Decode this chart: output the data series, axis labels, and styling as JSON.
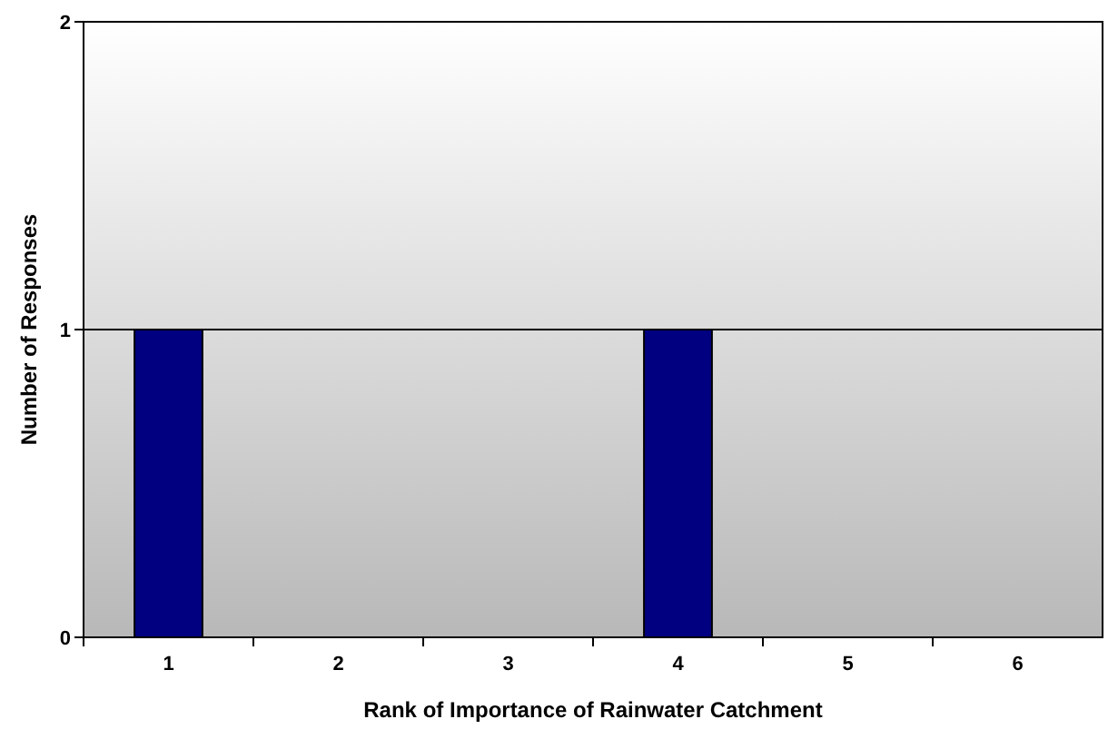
{
  "chart_data": {
    "type": "bar",
    "xlabel": "Rank of Importance of Rainwater Catchment",
    "ylabel": "Number of Responses",
    "categories": [
      "1",
      "2",
      "3",
      "4",
      "5",
      "6"
    ],
    "values": [
      1,
      0,
      0,
      1,
      0,
      0
    ],
    "color": "#000080",
    "ylim": [
      0,
      2
    ],
    "yticks": [
      0,
      1,
      2
    ],
    "grid": "y"
  }
}
